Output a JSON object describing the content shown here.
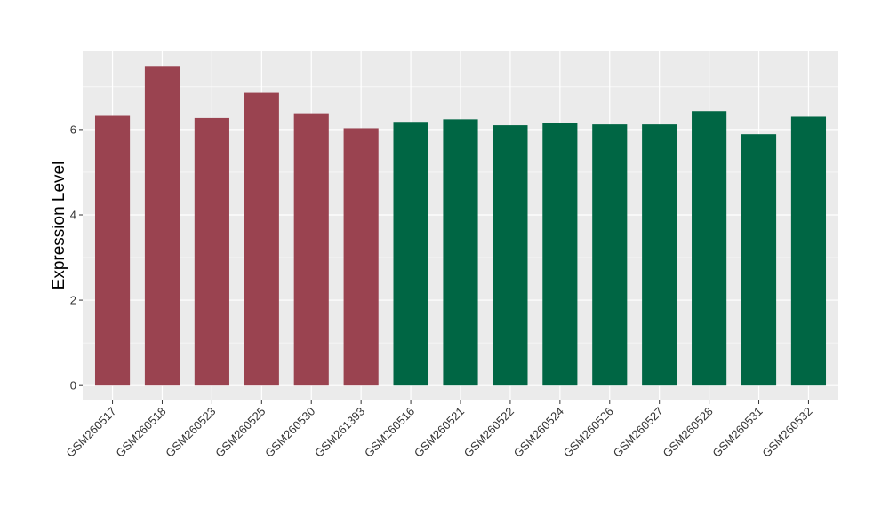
{
  "chart_data": {
    "type": "bar",
    "title": "",
    "xlabel": "",
    "ylabel": "Expression Level",
    "ylim": [
      -0.35,
      7.85
    ],
    "yticks": [
      0,
      2,
      4,
      6
    ],
    "grid": true,
    "categories": [
      "GSM260517",
      "GSM260518",
      "GSM260523",
      "GSM260525",
      "GSM260530",
      "GSM261393",
      "GSM260516",
      "GSM260521",
      "GSM260522",
      "GSM260524",
      "GSM260526",
      "GSM260527",
      "GSM260528",
      "GSM260531",
      "GSM260532"
    ],
    "values": [
      6.32,
      7.49,
      6.27,
      6.86,
      6.38,
      6.03,
      6.18,
      6.24,
      6.1,
      6.16,
      6.12,
      6.12,
      6.43,
      5.89,
      6.3
    ],
    "bar_colors": [
      "#9a4350",
      "#9a4350",
      "#9a4350",
      "#9a4350",
      "#9a4350",
      "#9a4350",
      "#006644",
      "#006644",
      "#006644",
      "#006644",
      "#006644",
      "#006644",
      "#006644",
      "#006644",
      "#006644"
    ],
    "panel_background": "#ebebeb",
    "grid_color": "#ffffff"
  }
}
